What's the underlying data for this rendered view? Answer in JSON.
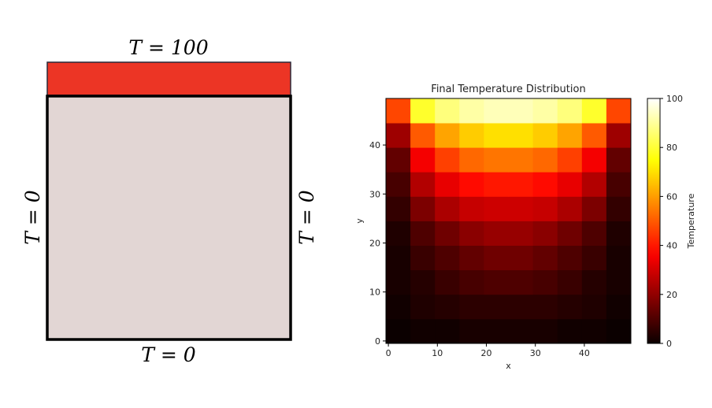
{
  "diagram": {
    "top_label": "T = 100",
    "bottom_label": "T = 0",
    "left_label": "T = 0",
    "right_label": "T = 0"
  },
  "chart_data": {
    "type": "heatmap",
    "title": "Final Temperature Distribution",
    "x_label": "x",
    "y_label": "y",
    "colorbar_label": "Temperature",
    "colormap": "hot",
    "xlim": [
      -0.5,
      49.5
    ],
    "ylim": [
      -0.5,
      49.5
    ],
    "xticks": [
      0,
      10,
      20,
      30,
      40
    ],
    "yticks": [
      0,
      10,
      20,
      30,
      40
    ],
    "zlim": [
      0,
      100
    ],
    "zticks": [
      0,
      20,
      40,
      60,
      80,
      100
    ],
    "z": [
      [
        0,
        1,
        1,
        2,
        2,
        2,
        2,
        1,
        1,
        0
      ],
      [
        1,
        3,
        4,
        5,
        5,
        5,
        5,
        4,
        3,
        1
      ],
      [
        2,
        4,
        7,
        9,
        10,
        10,
        9,
        7,
        4,
        2
      ],
      [
        2,
        7,
        10,
        13,
        15,
        15,
        13,
        10,
        7,
        2
      ],
      [
        3,
        10,
        15,
        19,
        21,
        21,
        19,
        15,
        10,
        3
      ],
      [
        6,
        17,
        24,
        28,
        29,
        29,
        28,
        24,
        17,
        6
      ],
      [
        9,
        25,
        33,
        38,
        40,
        40,
        38,
        33,
        25,
        9
      ],
      [
        13,
        35,
        46,
        52,
        54,
        54,
        52,
        46,
        35,
        13
      ],
      [
        22,
        50,
        61,
        67,
        70,
        70,
        67,
        61,
        50,
        22
      ],
      [
        47,
        79,
        87,
        91,
        93,
        93,
        91,
        87,
        79,
        47
      ]
    ]
  }
}
